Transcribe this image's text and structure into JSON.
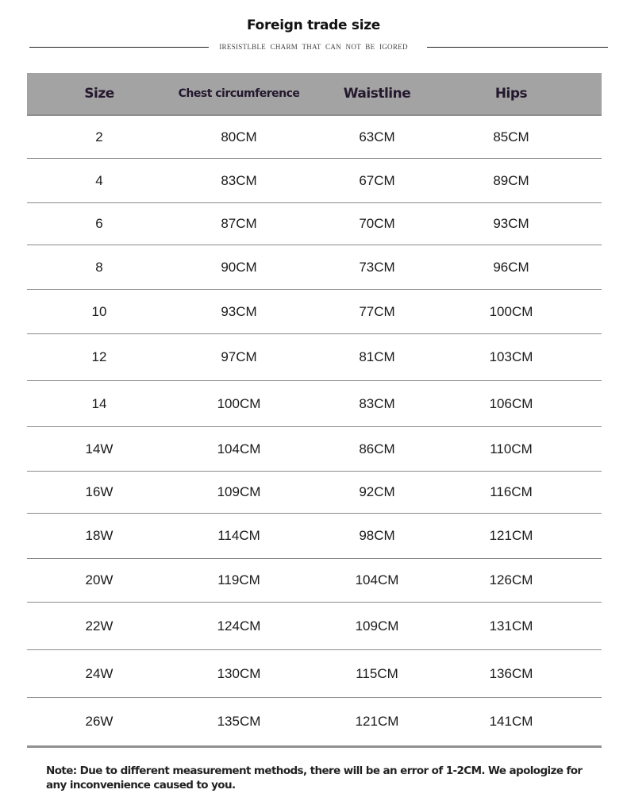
{
  "title": "Foreign trade size",
  "subtitle": "IRESISTLBLE CHARM  THAT  CAN NOT  BE IGORED",
  "headers": {
    "size": "Size",
    "chest": "Chest circumference",
    "waist": "Waistline",
    "hips": "Hips"
  },
  "rows": [
    {
      "size": "2",
      "chest": "80CM",
      "waist": "63CM",
      "hips": "85CM"
    },
    {
      "size": "4",
      "chest": "83CM",
      "waist": "67CM",
      "hips": "89CM"
    },
    {
      "size": "6",
      "chest": "87CM",
      "waist": "70CM",
      "hips": "93CM"
    },
    {
      "size": "8",
      "chest": "90CM",
      "waist": "73CM",
      "hips": "96CM"
    },
    {
      "size": "10",
      "chest": "93CM",
      "waist": "77CM",
      "hips": "100CM"
    },
    {
      "size": "12",
      "chest": "97CM",
      "waist": "81CM",
      "hips": "103CM"
    },
    {
      "size": "14",
      "chest": "100CM",
      "waist": "83CM",
      "hips": "106CM"
    },
    {
      "size": "14W",
      "chest": "104CM",
      "waist": "86CM",
      "hips": "110CM"
    },
    {
      "size": "16W",
      "chest": "109CM",
      "waist": "92CM",
      "hips": "116CM"
    },
    {
      "size": "18W",
      "chest": "114CM",
      "waist": "98CM",
      "hips": "121CM"
    },
    {
      "size": "20W",
      "chest": "119CM",
      "waist": "104CM",
      "hips": "126CM"
    },
    {
      "size": "22W",
      "chest": "124CM",
      "waist": "109CM",
      "hips": "131CM"
    },
    {
      "size": "24W",
      "chest": "130CM",
      "waist": "115CM",
      "hips": "136CM"
    },
    {
      "size": "26W",
      "chest": "135CM",
      "waist": "121CM",
      "hips": "141CM"
    }
  ],
  "note": "Note: Due to different measurement methods, there will be an error of 1-2CM. We apologize for any inconvenience caused to you."
}
